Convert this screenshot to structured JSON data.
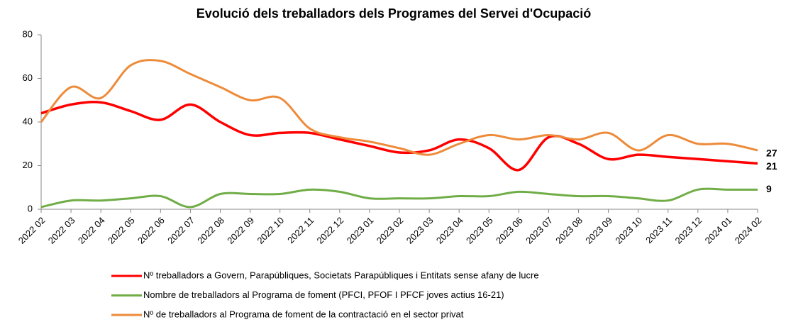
{
  "chart_data": {
    "type": "line",
    "title": "Evolució dels treballadors dels Programes del Servei d'Ocupació",
    "categories": [
      "2022 02",
      "2022 03",
      "2022 04",
      "2022 05",
      "2022 06",
      "2022 07",
      "2022 08",
      "2022 09",
      "2022 10",
      "2022 11",
      "2022 12",
      "2023 01",
      "2023 02",
      "2023 03",
      "2023 04",
      "2023 05",
      "2023 06",
      "2023 07",
      "2023 08",
      "2023 09",
      "2023 10",
      "2023 11",
      "2023 12",
      "2024 01",
      "2024 02"
    ],
    "series": [
      {
        "name": "Nº treballadors a Govern, Parapúbliques, Societats Parapúbliques i Entitats sense afany de lucre",
        "color": "#ff0000",
        "values": [
          44,
          48,
          49,
          45,
          41,
          48,
          40,
          34,
          35,
          35,
          32,
          29,
          26,
          27,
          32,
          28,
          18,
          33,
          30,
          23,
          25,
          24,
          23,
          22,
          21
        ]
      },
      {
        "name": "Nombre de treballadors al Programa de foment (PFCI, PFOF I PFCF joves actius 16-21)",
        "color": "#70ad47",
        "values": [
          1,
          4,
          4,
          5,
          6,
          1,
          7,
          7,
          7,
          9,
          8,
          5,
          5,
          5,
          6,
          6,
          8,
          7,
          6,
          6,
          5,
          4,
          9,
          9,
          9
        ]
      },
      {
        "name": "Nº de treballadors al Programa de foment de la contractació en el sector privat",
        "color": "#ed8b3a",
        "values": [
          40,
          56,
          51,
          66,
          68,
          62,
          56,
          50,
          51,
          37,
          33,
          31,
          28,
          25,
          30,
          34,
          32,
          34,
          32,
          35,
          27,
          34,
          30,
          30,
          27
        ]
      }
    ],
    "ylim": [
      0,
      80
    ],
    "yticks": [
      0,
      20,
      40,
      60,
      80
    ],
    "grid": false
  }
}
